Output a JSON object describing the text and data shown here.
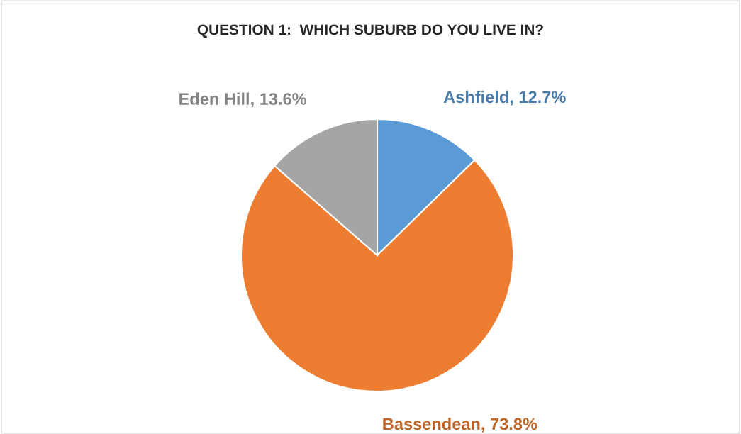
{
  "chart_data": {
    "type": "pie",
    "title": "QUESTION 1:  WHICH SUBURB DO YOU LIVE IN?",
    "categories": [
      "Ashfield",
      "Bassendean",
      "Eden Hill"
    ],
    "values": [
      12.7,
      73.8,
      13.6
    ],
    "colors": [
      "#5b9bd5",
      "#ed7d31",
      "#a5a5a5"
    ],
    "value_labels": [
      "12.7%",
      "73.8%",
      "13.6%"
    ],
    "legend": false
  }
}
